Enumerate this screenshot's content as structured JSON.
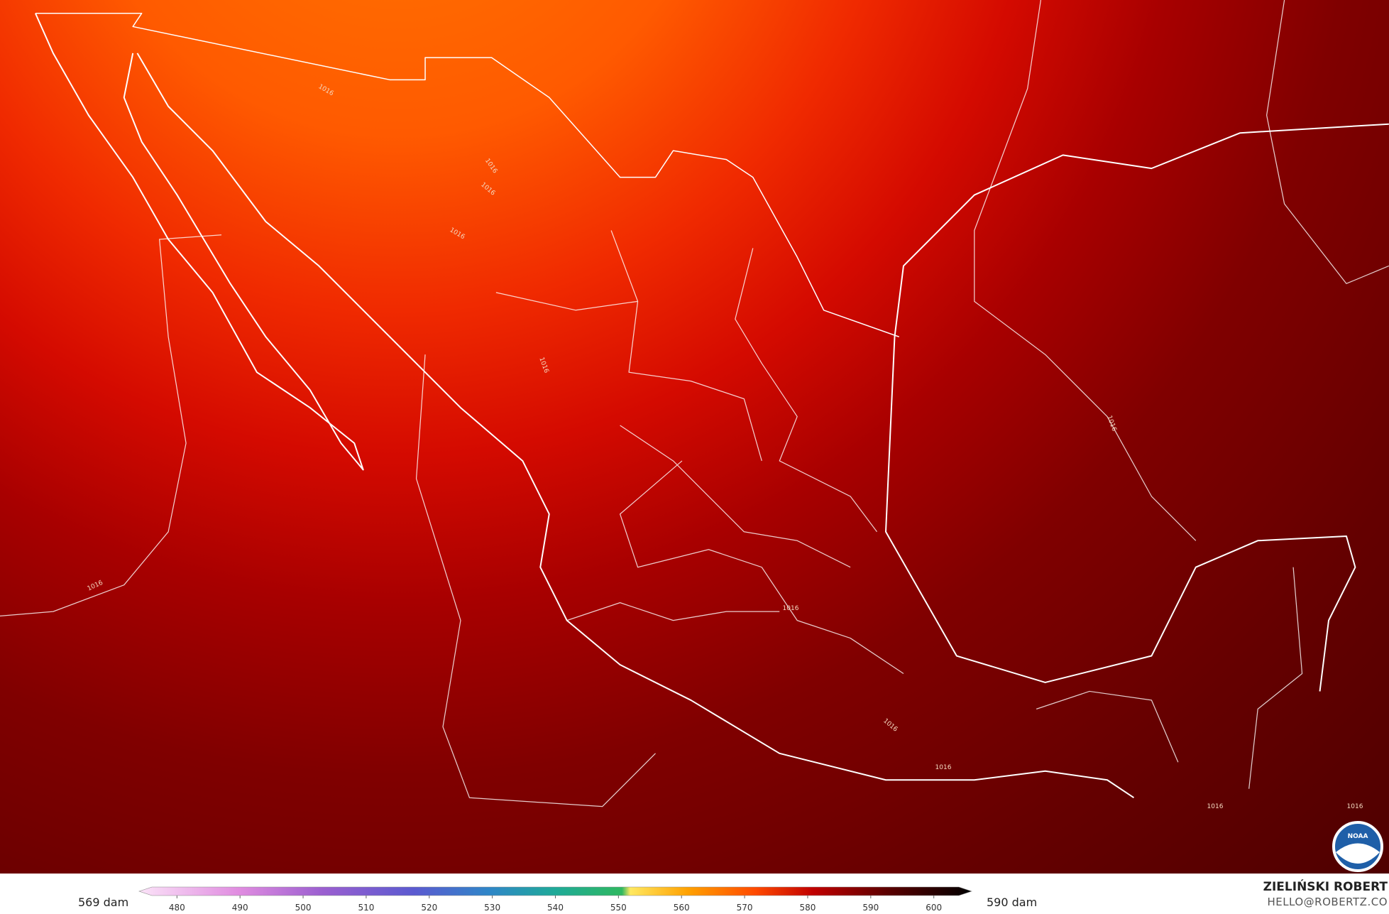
{
  "map": {
    "contour_labels": [
      "1016",
      "1016",
      "1016",
      "1016",
      "1016",
      "1016",
      "1016",
      "1016",
      "1016",
      "1016",
      "1016",
      "1016"
    ],
    "logo": "NOAA"
  },
  "colorbar": {
    "min_label": "569 dam",
    "max_label": "590 dam",
    "lim": [
      474,
      606
    ],
    "ticks": [
      480,
      490,
      500,
      510,
      520,
      530,
      540,
      550,
      560,
      570,
      580,
      590,
      600
    ]
  },
  "credits": {
    "name": "ZIELIŃSKI ROBERT",
    "contact": "HELLO@ROBERTZ.CO"
  }
}
